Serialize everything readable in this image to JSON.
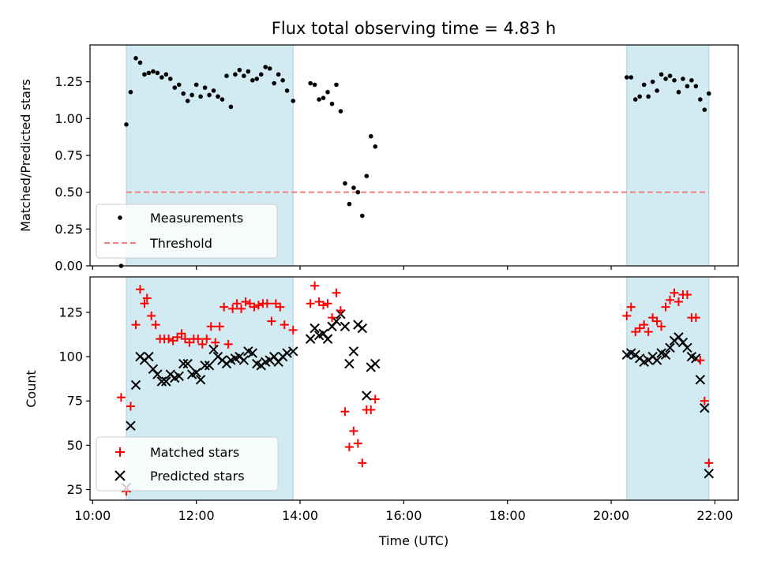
{
  "title": "Flux total observing time = 4.83 h",
  "colors": {
    "shade": "#add8e6",
    "threshold": "#f08080",
    "measurement": "#000000",
    "matched": "#ff0000",
    "predicted": "#000000"
  },
  "chart_data": [
    {
      "type": "scatter",
      "ylabel": "Matched/Predicted stars",
      "xlabel": "",
      "ylim": [
        0,
        1.5
      ],
      "yticks": [
        0.0,
        0.25,
        0.5,
        0.75,
        1.0,
        1.25
      ],
      "ytick_labels": [
        "0.00",
        "0.25",
        "0.50",
        "0.75",
        "1.00",
        "1.25"
      ],
      "legend": {
        "position": "lower-left",
        "entries": [
          "Measurements",
          "Threshold"
        ]
      },
      "shaded_intervals": [
        [
          "10:39",
          "13:52"
        ],
        [
          "20:18",
          "21:53"
        ]
      ],
      "threshold": {
        "name": "Threshold",
        "y": 0.5,
        "x_start": "10:39",
        "x_end": "21:53",
        "style": "dashed"
      },
      "series": [
        {
          "name": "Measurements",
          "marker": "dot",
          "x": [
            "10:33",
            "10:39",
            "10:44",
            "10:50",
            "10:55",
            "11:00",
            "11:05",
            "11:10",
            "11:15",
            "11:20",
            "11:25",
            "11:30",
            "11:35",
            "11:40",
            "11:45",
            "11:50",
            "11:55",
            "12:00",
            "12:05",
            "12:10",
            "12:15",
            "12:20",
            "12:25",
            "12:30",
            "12:35",
            "12:40",
            "12:45",
            "12:50",
            "12:55",
            "13:00",
            "13:05",
            "13:10",
            "13:15",
            "13:20",
            "13:25",
            "13:30",
            "13:35",
            "13:40",
            "13:45",
            "13:52",
            "14:12",
            "14:17",
            "14:22",
            "14:27",
            "14:32",
            "14:37",
            "14:42",
            "14:47",
            "14:52",
            "14:57",
            "15:02",
            "15:07",
            "15:12",
            "15:17",
            "15:22",
            "15:27",
            "20:18",
            "20:23",
            "20:28",
            "20:33",
            "20:38",
            "20:43",
            "20:48",
            "20:53",
            "20:58",
            "21:03",
            "21:08",
            "21:13",
            "21:18",
            "21:23",
            "21:28",
            "21:33",
            "21:38",
            "21:43",
            "21:48",
            "21:53"
          ],
          "y": [
            0.0,
            0.96,
            1.18,
            1.41,
            1.38,
            1.3,
            1.31,
            1.32,
            1.31,
            1.28,
            1.3,
            1.27,
            1.21,
            1.23,
            1.17,
            1.12,
            1.16,
            1.23,
            1.15,
            1.21,
            1.16,
            1.19,
            1.15,
            1.13,
            1.29,
            1.08,
            1.3,
            1.33,
            1.29,
            1.32,
            1.26,
            1.27,
            1.3,
            1.35,
            1.34,
            1.24,
            1.3,
            1.26,
            1.19,
            1.12,
            1.24,
            1.23,
            1.13,
            1.14,
            1.18,
            1.1,
            1.23,
            1.05,
            0.56,
            0.42,
            0.53,
            0.5,
            0.34,
            0.61,
            0.88,
            0.81,
            1.28,
            1.28,
            1.13,
            1.15,
            1.23,
            1.15,
            1.25,
            1.19,
            1.3,
            1.27,
            1.29,
            1.26,
            1.18,
            1.27,
            1.22,
            1.26,
            1.22,
            1.13,
            1.06,
            1.17
          ]
        }
      ]
    },
    {
      "type": "scatter",
      "ylabel": "Count",
      "xlabel": "Time (UTC)",
      "ylim": [
        19,
        145
      ],
      "yticks": [
        25,
        50,
        75,
        100,
        125
      ],
      "ytick_labels": [
        "25",
        "50",
        "75",
        "100",
        "125"
      ],
      "xlim": [
        "09:57",
        "22:27"
      ],
      "xticks": [
        "10:00",
        "12:00",
        "14:00",
        "16:00",
        "18:00",
        "20:00",
        "22:00"
      ],
      "xtick_labels": [
        "10:00",
        "12:00",
        "14:00",
        "16:00",
        "18:00",
        "20:00",
        "22:00"
      ],
      "legend": {
        "position": "lower-left",
        "entries": [
          "Matched stars",
          "Predicted stars"
        ]
      },
      "shaded_intervals": [
        [
          "10:39",
          "13:52"
        ],
        [
          "20:18",
          "21:53"
        ]
      ],
      "series": [
        {
          "name": "Matched stars",
          "marker": "plus",
          "x": [
            "10:33",
            "10:39",
            "10:44",
            "10:50",
            "10:55",
            "11:00",
            "11:03",
            "11:08",
            "11:13",
            "11:18",
            "11:23",
            "11:28",
            "11:33",
            "11:38",
            "11:43",
            "11:47",
            "11:52",
            "11:57",
            "12:02",
            "12:07",
            "12:12",
            "12:17",
            "12:22",
            "12:27",
            "12:32",
            "12:37",
            "12:42",
            "12:47",
            "12:52",
            "12:57",
            "13:02",
            "13:07",
            "13:12",
            "13:17",
            "13:22",
            "13:27",
            "13:32",
            "13:37",
            "13:42",
            "13:52",
            "14:12",
            "14:17",
            "14:22",
            "14:27",
            "14:32",
            "14:37",
            "14:42",
            "14:47",
            "14:52",
            "14:57",
            "15:02",
            "15:07",
            "15:12",
            "15:17",
            "15:22",
            "15:27",
            "20:18",
            "20:23",
            "20:28",
            "20:33",
            "20:38",
            "20:43",
            "20:48",
            "20:53",
            "20:58",
            "21:03",
            "21:08",
            "21:13",
            "21:18",
            "21:23",
            "21:28",
            "21:33",
            "21:38",
            "21:43",
            "21:48",
            "21:53"
          ],
          "y": [
            77,
            24,
            72,
            118,
            138,
            130,
            133,
            123,
            118,
            110,
            110,
            110,
            109,
            111,
            113,
            110,
            108,
            110,
            110,
            107,
            110,
            117,
            108,
            117,
            128,
            107,
            127,
            130,
            127,
            131,
            130,
            128,
            129,
            130,
            130,
            120,
            130,
            128,
            118,
            115,
            130,
            140,
            131,
            129,
            130,
            122,
            136,
            126,
            69,
            49,
            58,
            51,
            40,
            70,
            70,
            76,
            123,
            128,
            114,
            116,
            118,
            114,
            122,
            120,
            117,
            128,
            132,
            136,
            131,
            135,
            135,
            122,
            122,
            98,
            75,
            40
          ]
        },
        {
          "name": "Predicted stars",
          "marker": "x",
          "x": [
            "10:39",
            "10:44",
            "10:50",
            "10:55",
            "11:00",
            "11:05",
            "11:10",
            "11:15",
            "11:20",
            "11:25",
            "11:30",
            "11:35",
            "11:40",
            "11:45",
            "11:50",
            "11:55",
            "12:00",
            "12:05",
            "12:10",
            "12:15",
            "12:20",
            "12:25",
            "12:30",
            "12:35",
            "12:40",
            "12:45",
            "12:50",
            "12:55",
            "13:00",
            "13:05",
            "13:10",
            "13:15",
            "13:20",
            "13:25",
            "13:30",
            "13:35",
            "13:40",
            "13:45",
            "13:52",
            "14:12",
            "14:17",
            "14:22",
            "14:27",
            "14:32",
            "14:37",
            "14:42",
            "14:47",
            "14:52",
            "14:57",
            "15:02",
            "15:07",
            "15:12",
            "15:17",
            "15:22",
            "15:27",
            "20:18",
            "20:23",
            "20:28",
            "20:33",
            "20:38",
            "20:43",
            "20:48",
            "20:53",
            "20:58",
            "21:03",
            "21:08",
            "21:13",
            "21:18",
            "21:23",
            "21:28",
            "21:33",
            "21:38",
            "21:43",
            "21:48",
            "21:53"
          ],
          "y": [
            26,
            61,
            84,
            100,
            98,
            100,
            93,
            90,
            86,
            86,
            90,
            88,
            89,
            96,
            96,
            90,
            91,
            87,
            95,
            95,
            104,
            100,
            98,
            96,
            98,
            99,
            100,
            98,
            103,
            102,
            96,
            95,
            97,
            98,
            100,
            97,
            100,
            102,
            103,
            110,
            116,
            112,
            113,
            110,
            117,
            120,
            124,
            117,
            96,
            103,
            118,
            116,
            78,
            94,
            96,
            101,
            102,
            101,
            99,
            97,
            98,
            100,
            98,
            102,
            101,
            105,
            109,
            111,
            108,
            105,
            100,
            99,
            87,
            71,
            34
          ]
        }
      ]
    }
  ]
}
